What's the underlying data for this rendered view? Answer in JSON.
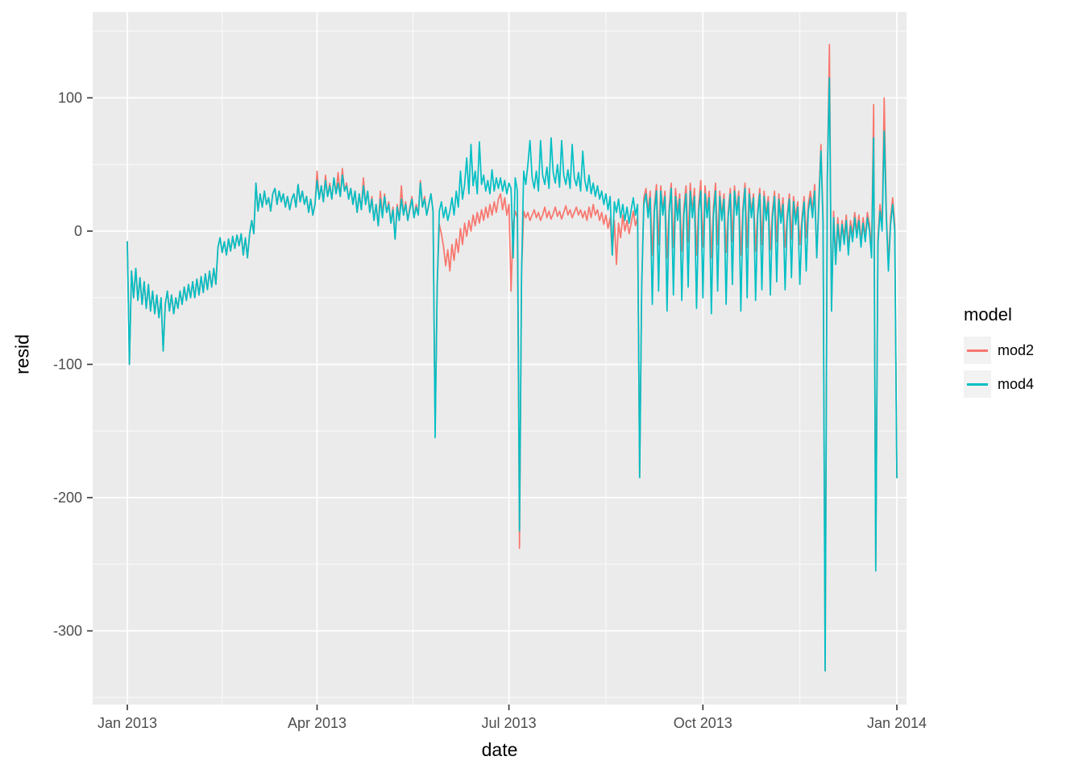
{
  "figure": {
    "background": "#FFFFFF",
    "panel_background": "#EBEBEB",
    "grid_color": "#FFFFFF",
    "tick_color": "#333333",
    "tick_label_color": "#4D4D4D"
  },
  "legend": {
    "title": "model"
  },
  "chart_data": {
    "type": "line",
    "title": "",
    "xlabel": "date",
    "ylabel": "resid",
    "x_unit": "days since 2013-01-01",
    "xlim": [
      -16,
      370
    ],
    "ylim": [
      -355,
      165
    ],
    "grid": true,
    "legend_position": "right",
    "x_tick_days": [
      0,
      90,
      181,
      273,
      365
    ],
    "x_tick_labels": [
      "Jan 2013",
      "Apr 2013",
      "Jul 2013",
      "Oct 2013",
      "Jan 2014"
    ],
    "y_ticks": [
      100,
      0,
      -100,
      -200,
      -300
    ],
    "y_tick_labels": [
      "100",
      "0",
      "-100",
      "-200",
      "-300"
    ],
    "series": [
      {
        "name": "mod2",
        "color": "#F8766D",
        "values": [
          -8,
          -100,
          -30,
          -50,
          -28,
          -52,
          -35,
          -55,
          -38,
          -58,
          -40,
          -60,
          -45,
          -62,
          -48,
          -65,
          -50,
          -90,
          -55,
          -45,
          -60,
          -48,
          -62,
          -50,
          -58,
          -45,
          -55,
          -42,
          -52,
          -40,
          -50,
          -38,
          -50,
          -36,
          -48,
          -34,
          -46,
          -32,
          -44,
          -30,
          -42,
          -28,
          -40,
          -12,
          -5,
          -16,
          -8,
          -18,
          -6,
          -15,
          -4,
          -13,
          -3,
          -11,
          -2,
          -18,
          -5,
          -20,
          -2,
          8,
          -2,
          36,
          15,
          28,
          18,
          30,
          20,
          25,
          15,
          28,
          32,
          20,
          30,
          22,
          28,
          18,
          26,
          16,
          24,
          28,
          18,
          35,
          22,
          30,
          20,
          26,
          14,
          24,
          12,
          20,
          45,
          24,
          34,
          22,
          42,
          26,
          36,
          24,
          40,
          28,
          44,
          26,
          47,
          30,
          36,
          24,
          32,
          20,
          30,
          14,
          28,
          16,
          40,
          20,
          30,
          14,
          26,
          8,
          20,
          4,
          30,
          12,
          28,
          14,
          22,
          6,
          18,
          -6,
          20,
          8,
          34,
          12,
          22,
          8,
          18,
          26,
          10,
          20,
          12,
          38,
          18,
          26,
          12,
          20,
          28,
          15,
          -148,
          -40,
          5,
          -2,
          -12,
          -26,
          -14,
          -30,
          -10,
          -22,
          -6,
          -16,
          2,
          -10,
          6,
          -4,
          8,
          0,
          12,
          4,
          14,
          6,
          16,
          8,
          18,
          10,
          20,
          12,
          22,
          14,
          24,
          28,
          16,
          25,
          12,
          20,
          -45,
          5,
          15,
          10,
          -238,
          -30,
          15,
          10,
          14,
          8,
          12,
          16,
          10,
          14,
          8,
          12,
          18,
          10,
          15,
          9,
          13,
          18,
          11,
          15,
          9,
          14,
          19,
          12,
          16,
          10,
          14,
          18,
          12,
          16,
          10,
          15,
          8,
          18,
          10,
          20,
          12,
          16,
          8,
          14,
          5,
          12,
          2,
          10,
          -18,
          8,
          -25,
          6,
          -5,
          12,
          0,
          8,
          -2,
          6,
          15,
          4,
          10,
          -185,
          -40,
          25,
          32,
          15,
          30,
          -18,
          20,
          35,
          -10,
          34,
          16,
          30,
          -20,
          18,
          36,
          -12,
          32,
          14,
          28,
          -15,
          18,
          34,
          -8,
          36,
          15,
          32,
          -18,
          20,
          38,
          -12,
          34,
          16,
          30,
          -20,
          18,
          36,
          -10,
          30,
          12,
          28,
          -16,
          15,
          32,
          -8,
          34,
          15,
          30,
          -18,
          18,
          36,
          -12,
          32,
          14,
          28,
          -15,
          16,
          32,
          -10,
          30,
          12,
          26,
          -14,
          15,
          30,
          -8,
          28,
          10,
          25,
          -12,
          12,
          28,
          -6,
          26,
          10,
          22,
          -10,
          10,
          26,
          -5,
          20,
          30,
          15,
          35,
          -20,
          25,
          65,
          10,
          -330,
          40,
          140,
          -60,
          15,
          -20,
          10,
          -10,
          8,
          -5,
          12,
          -12,
          8,
          -2,
          14,
          0,
          12,
          -8,
          10,
          -4,
          14,
          5,
          -15,
          95,
          -252,
          -5,
          20,
          5,
          100,
          15,
          -25,
          10,
          25,
          5,
          -185
        ]
      },
      {
        "name": "mod4",
        "color": "#00BFC4",
        "values": [
          -8,
          -100,
          -30,
          -50,
          -28,
          -52,
          -35,
          -55,
          -38,
          -58,
          -40,
          -60,
          -45,
          -62,
          -48,
          -65,
          -50,
          -90,
          -55,
          -45,
          -60,
          -48,
          -62,
          -50,
          -58,
          -45,
          -55,
          -42,
          -52,
          -40,
          -50,
          -38,
          -50,
          -36,
          -48,
          -34,
          -46,
          -32,
          -44,
          -30,
          -42,
          -28,
          -40,
          -12,
          -5,
          -16,
          -8,
          -18,
          -6,
          -15,
          -4,
          -13,
          -3,
          -11,
          -2,
          -18,
          -5,
          -20,
          -2,
          8,
          -2,
          36,
          15,
          28,
          18,
          30,
          20,
          25,
          15,
          28,
          32,
          20,
          30,
          22,
          28,
          18,
          26,
          16,
          24,
          28,
          18,
          35,
          22,
          30,
          20,
          26,
          14,
          24,
          12,
          20,
          38,
          24,
          34,
          22,
          38,
          26,
          34,
          24,
          40,
          28,
          36,
          26,
          42,
          30,
          34,
          24,
          32,
          20,
          30,
          14,
          28,
          16,
          34,
          20,
          30,
          14,
          24,
          8,
          20,
          4,
          24,
          10,
          26,
          14,
          20,
          6,
          16,
          -6,
          18,
          8,
          24,
          12,
          20,
          8,
          16,
          24,
          10,
          18,
          12,
          36,
          18,
          24,
          12,
          20,
          28,
          15,
          -155,
          -40,
          15,
          22,
          10,
          18,
          8,
          15,
          25,
          12,
          30,
          18,
          45,
          24,
          35,
          55,
          28,
          65,
          34,
          45,
          28,
          67,
          35,
          42,
          30,
          38,
          28,
          46,
          30,
          40,
          32,
          40,
          30,
          38,
          28,
          36,
          32,
          -20,
          40,
          30,
          -225,
          -30,
          45,
          35,
          50,
          68,
          40,
          32,
          45,
          30,
          68,
          42,
          35,
          48,
          32,
          70,
          44,
          36,
          50,
          33,
          68,
          42,
          35,
          46,
          32,
          65,
          40,
          34,
          44,
          30,
          60,
          38,
          30,
          42,
          28,
          36,
          26,
          34,
          24,
          30,
          20,
          28,
          16,
          26,
          -18,
          22,
          14,
          24,
          10,
          20,
          8,
          18,
          6,
          16,
          25,
          12,
          20,
          -185,
          -40,
          20,
          28,
          10,
          25,
          -55,
          15,
          30,
          -45,
          30,
          12,
          26,
          -60,
          14,
          32,
          -48,
          26,
          8,
          24,
          -52,
          12,
          28,
          -42,
          30,
          10,
          26,
          -58,
          15,
          30,
          -50,
          28,
          10,
          25,
          -62,
          12,
          30,
          -45,
          26,
          8,
          24,
          -55,
          10,
          28,
          -40,
          30,
          12,
          26,
          -60,
          14,
          32,
          -50,
          28,
          10,
          25,
          -52,
          12,
          28,
          -44,
          26,
          8,
          22,
          -48,
          10,
          26,
          -38,
          24,
          6,
          20,
          -44,
          8,
          24,
          -35,
          22,
          5,
          18,
          -40,
          6,
          22,
          -30,
          15,
          25,
          10,
          30,
          -20,
          20,
          60,
          5,
          -330,
          40,
          115,
          -60,
          10,
          -25,
          5,
          -15,
          5,
          -10,
          8,
          -18,
          4,
          -8,
          10,
          -5,
          8,
          -12,
          6,
          -8,
          10,
          0,
          -20,
          70,
          -255,
          -10,
          15,
          0,
          75,
          10,
          -30,
          5,
          20,
          0,
          -185
        ]
      }
    ]
  }
}
